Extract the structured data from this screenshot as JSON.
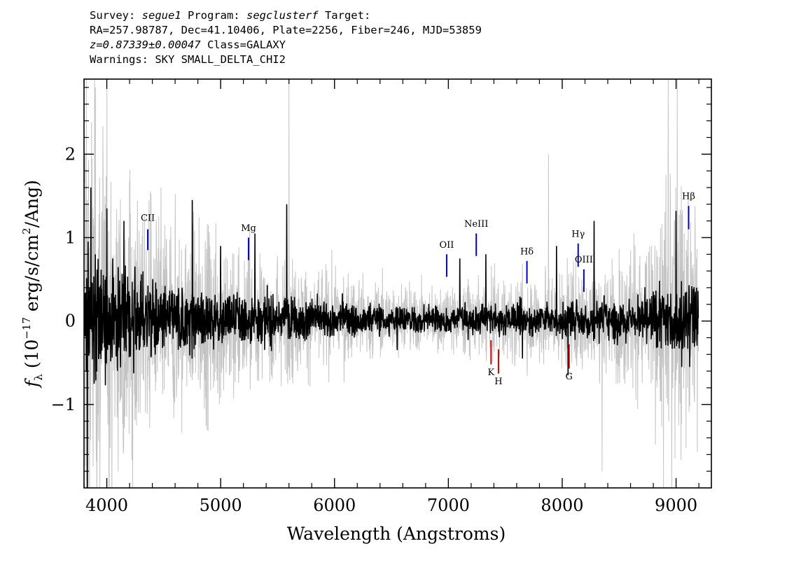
{
  "header": {
    "survey_label": "Survey: ",
    "survey": "segue1",
    "program_label": " Program: ",
    "program": "segclusterf",
    "target_label": " Target:",
    "line2": "RA=257.98787, Dec=41.10406, Plate=2256, Fiber=246, MJD=53859",
    "redshift": "z=0.87339±0.00047",
    "class_text": " Class=GALAXY",
    "warnings": "Warnings: SKY SMALL_DELTA_CHI2"
  },
  "chart_data": {
    "type": "line",
    "title": "",
    "xlabel": "Wavelength (Angstroms)",
    "ylabel": "f_λ (10^-17 erg/s/cm²/Ang)",
    "xlim": [
      3800,
      9310
    ],
    "ylim": [
      -2.0,
      2.9
    ],
    "x_ticks": [
      4000,
      5000,
      6000,
      7000,
      8000,
      9000
    ],
    "x_tick_labels": [
      "4000",
      "5000",
      "6000",
      "7000",
      "8000",
      "9000"
    ],
    "y_ticks": [
      -1,
      0,
      1,
      2
    ],
    "y_tick_labels": [
      "−1",
      "0",
      "1",
      "2"
    ],
    "grid": false,
    "series": [
      {
        "role": "smoothed flux",
        "color": "#000000",
        "envelope": [
          [
            3800,
            1.4
          ],
          [
            4000,
            1.0
          ],
          [
            4500,
            0.7
          ],
          [
            5000,
            0.6
          ],
          [
            5500,
            0.45
          ],
          [
            6000,
            0.35
          ],
          [
            6500,
            0.28
          ],
          [
            7000,
            0.25
          ],
          [
            7500,
            0.3
          ],
          [
            8000,
            0.35
          ],
          [
            8500,
            0.4
          ],
          [
            8800,
            0.55
          ],
          [
            9000,
            0.65
          ],
          [
            9200,
            0.7
          ]
        ],
        "peaks": [
          [
            3830,
            -2.0
          ],
          [
            3860,
            1.6
          ],
          [
            3900,
            0.8
          ],
          [
            4000,
            1.35
          ],
          [
            4150,
            1.2
          ],
          [
            4750,
            1.45
          ],
          [
            5000,
            0.9
          ],
          [
            5300,
            1.05
          ],
          [
            5580,
            1.4
          ],
          [
            6550,
            -0.35
          ],
          [
            7100,
            0.75
          ],
          [
            7330,
            0.8
          ],
          [
            7650,
            -0.45
          ],
          [
            7950,
            0.9
          ],
          [
            8280,
            1.2
          ],
          [
            8050,
            -0.65
          ],
          [
            9000,
            1.32
          ],
          [
            9050,
            -0.55
          ],
          [
            9120,
            -0.55
          ],
          [
            9180,
            0.4
          ]
        ]
      },
      {
        "role": "raw flux",
        "color": "#c4c4c4",
        "envelope": [
          [
            3800,
            4.2
          ],
          [
            4000,
            2.6
          ],
          [
            4500,
            1.6
          ],
          [
            5000,
            1.3
          ],
          [
            5500,
            0.95
          ],
          [
            6000,
            0.75
          ],
          [
            6500,
            0.55
          ],
          [
            7000,
            0.5
          ],
          [
            7500,
            0.6
          ],
          [
            8000,
            0.75
          ],
          [
            8500,
            0.9
          ],
          [
            8800,
            1.4
          ],
          [
            9000,
            2.3
          ],
          [
            9200,
            1.5
          ]
        ],
        "spikes": [
          [
            3820,
            3.0
          ],
          [
            3850,
            -2.0
          ],
          [
            3900,
            2.8
          ],
          [
            3940,
            -2.0
          ],
          [
            4000,
            2.9
          ],
          [
            4100,
            -1.8
          ],
          [
            5600,
            2.9
          ],
          [
            7880,
            2.0
          ],
          [
            8350,
            -1.8
          ],
          [
            8930,
            2.9
          ],
          [
            9010,
            2.9
          ],
          [
            8890,
            -2.0
          ]
        ]
      }
    ],
    "line_markers": [
      {
        "label": "CII",
        "x": 4360,
        "y_low": 0.85,
        "y_high": 1.1,
        "label_y": 1.2,
        "color": "#0000c8"
      },
      {
        "label": "Mg",
        "x": 5245,
        "y_low": 0.73,
        "y_high": 1.0,
        "label_y": 1.08,
        "color": "#0000c8"
      },
      {
        "label": "OII",
        "x": 6985,
        "y_low": 0.53,
        "y_high": 0.8,
        "label_y": 0.88,
        "color": "#0000c8"
      },
      {
        "label": "NeIII",
        "x": 7245,
        "y_low": 0.78,
        "y_high": 1.05,
        "label_y": 1.13,
        "color": "#0000c8"
      },
      {
        "label": "Hδ",
        "x": 7690,
        "y_low": 0.45,
        "y_high": 0.72,
        "label_y": 0.8,
        "color": "#0000c8"
      },
      {
        "label": "Hγ",
        "x": 8140,
        "y_low": 0.65,
        "y_high": 0.93,
        "label_y": 1.01,
        "color": "#0000c8"
      },
      {
        "label": "OIII",
        "x": 8190,
        "y_low": 0.35,
        "y_high": 0.62,
        "label_y": 0.7,
        "color": "#0000c8"
      },
      {
        "label": "Hβ",
        "x": 9110,
        "y_low": 1.1,
        "y_high": 1.38,
        "label_y": 1.46,
        "color": "#0000c8"
      },
      {
        "label": "K",
        "x": 7375,
        "y_low": -0.52,
        "y_high": -0.23,
        "label_y": -0.65,
        "color": "#c80000"
      },
      {
        "label": "H",
        "x": 7440,
        "y_low": -0.63,
        "y_high": -0.34,
        "label_y": -0.76,
        "color": "#c80000"
      },
      {
        "label": "G",
        "x": 8060,
        "y_low": -0.57,
        "y_high": -0.28,
        "label_y": -0.7,
        "color": "#c80000"
      }
    ]
  }
}
